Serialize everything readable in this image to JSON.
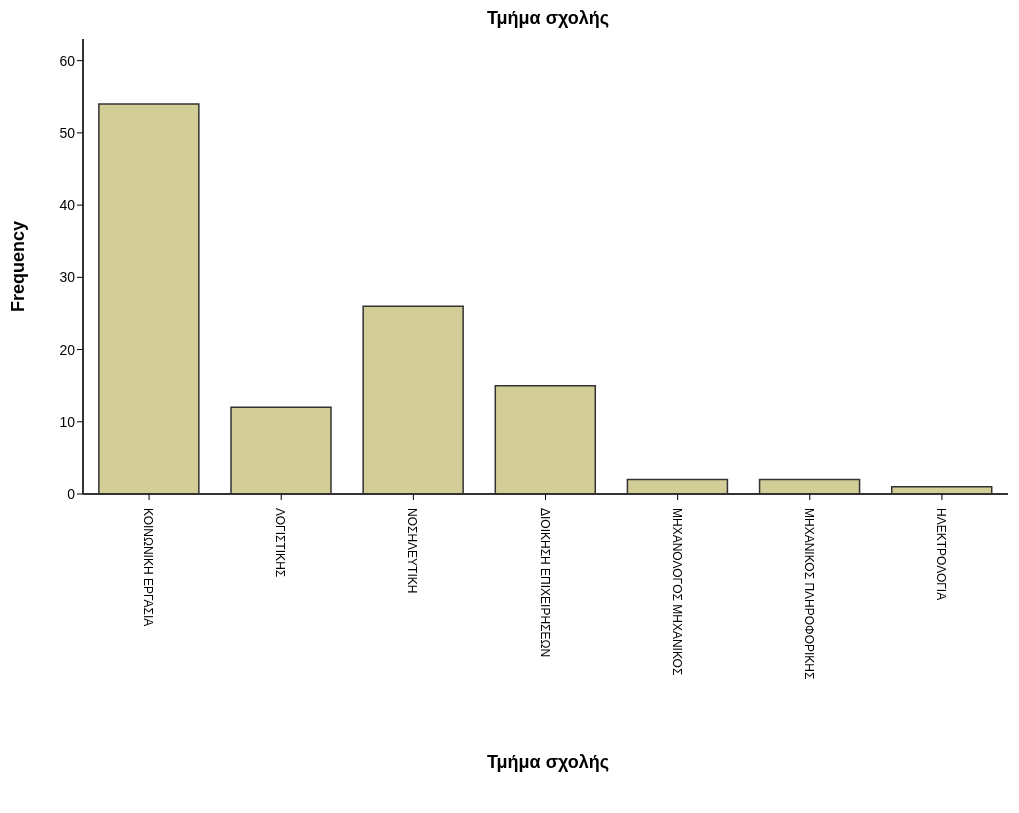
{
  "chart_data": {
    "type": "bar",
    "title": "Τμήμα σχολής",
    "xlabel": "Τμήμα σχολής",
    "ylabel": "Frequency",
    "categories": [
      "ΚΟΙΝΩΝΙΚΗ ΕΡΓΑΣΙΑ",
      "ΛΟΓΙΣΤΙΚΗΣ",
      "ΝΟΣΗΛΕΥΤΙΚΗ",
      "ΔΙΟΙΚΗΣΗ ΕΠΙΧΕΙΡΗΣΕΩΝ",
      "ΜΗΧΑΝΟΛΟΓΟΣ ΜΗΧΑΝΙΚΟΣ",
      "ΜΗΧΑΝΙΚΟΣ ΠΛΗΡΟΦΟΡΙΚΗΣ",
      "ΗΛΕΚΤΡΟΛΟΓΙΑ"
    ],
    "values": [
      54,
      12,
      26,
      15,
      2,
      2,
      1
    ],
    "color": "#d3ce97",
    "ylim": [
      0,
      63
    ],
    "yticks": [
      0,
      10,
      20,
      30,
      40,
      50,
      60
    ],
    "grid": false,
    "legend": false
  }
}
